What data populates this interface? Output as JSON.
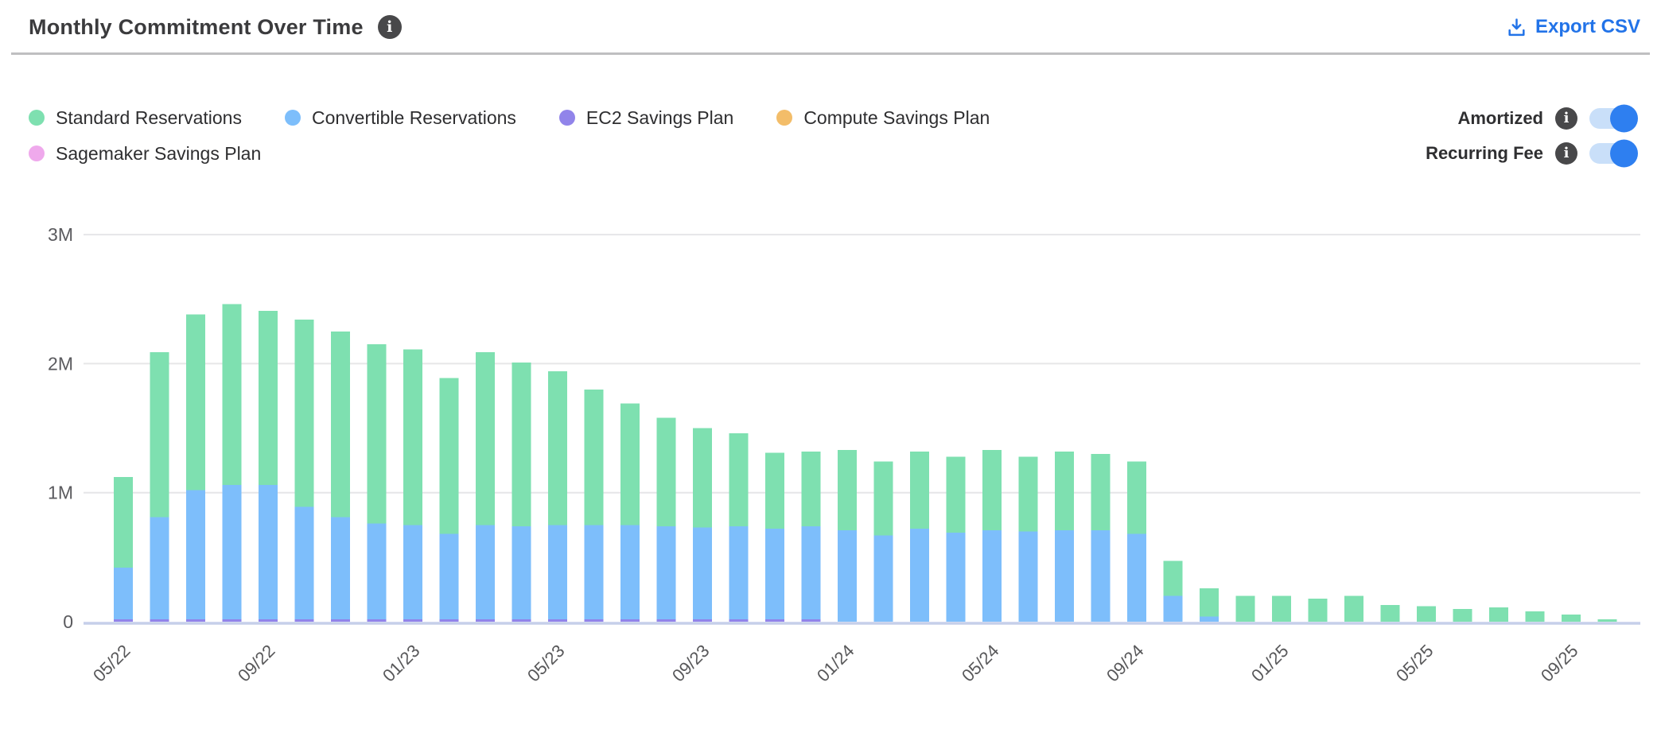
{
  "header": {
    "title": "Monthly Commitment Over Time",
    "export_label": "Export CSV"
  },
  "legend": {
    "items": [
      {
        "label": "Standard Reservations",
        "color": "#7ee0b0"
      },
      {
        "label": "Convertible Reservations",
        "color": "#7dbefb"
      },
      {
        "label": "EC2 Savings Plan",
        "color": "#9184ea"
      },
      {
        "label": "Compute Savings Plan",
        "color": "#f3bd69"
      },
      {
        "label": "Sagemaker Savings Plan",
        "color": "#efa9ec"
      }
    ]
  },
  "toggles": {
    "amortized": {
      "label": "Amortized",
      "state": "on"
    },
    "recurring_fee": {
      "label": "Recurring Fee",
      "state": "on"
    }
  },
  "colors": {
    "accent_blue": "#2273e8",
    "toggle_track": "#c9dff9",
    "toggle_knob": "#2e7ff0",
    "grid_line": "#e6e6e8",
    "zero_line": "#c6cfea",
    "title_text": "#3b3b3d",
    "axis_text": "#5a5a5e"
  },
  "chart_data": {
    "type": "bar",
    "stacked": true,
    "title": "Monthly Commitment Over Time",
    "unit": "M",
    "ylim": [
      0,
      3
    ],
    "grid": "horizontal",
    "legend_position": "top-left",
    "categories": [
      "05/22",
      "06/22",
      "07/22",
      "08/22",
      "09/22",
      "10/22",
      "11/22",
      "12/22",
      "01/23",
      "02/23",
      "03/23",
      "04/23",
      "05/23",
      "06/23",
      "07/23",
      "08/23",
      "09/23",
      "10/23",
      "11/23",
      "12/23",
      "01/24",
      "02/24",
      "03/24",
      "04/24",
      "05/24",
      "06/24",
      "07/24",
      "08/24",
      "09/24",
      "10/24",
      "11/24",
      "12/24",
      "01/25",
      "02/25",
      "03/25",
      "04/25",
      "05/25",
      "06/25",
      "07/25",
      "08/25",
      "09/25",
      "10/25"
    ],
    "series": [
      {
        "name": "EC2 Savings Plan",
        "color": "#9184ea",
        "values": [
          0.02,
          0.02,
          0.02,
          0.02,
          0.02,
          0.02,
          0.02,
          0.02,
          0.02,
          0.02,
          0.02,
          0.02,
          0.02,
          0.02,
          0.02,
          0.02,
          0.02,
          0.02,
          0.02,
          0.02,
          0,
          0,
          0,
          0,
          0,
          0,
          0,
          0,
          0,
          0,
          0,
          0,
          0,
          0,
          0,
          0,
          0,
          0,
          0,
          0,
          0,
          0
        ]
      },
      {
        "name": "Convertible Reservations",
        "color": "#7dbefb",
        "values": [
          0.4,
          0.79,
          1.0,
          1.04,
          1.04,
          0.87,
          0.79,
          0.74,
          0.73,
          0.66,
          0.73,
          0.72,
          0.73,
          0.73,
          0.73,
          0.72,
          0.71,
          0.72,
          0.7,
          0.72,
          0.71,
          0.67,
          0.72,
          0.69,
          0.71,
          0.7,
          0.71,
          0.71,
          0.68,
          0.2,
          0.04,
          0,
          0,
          0,
          0,
          0,
          0,
          0,
          0,
          0,
          0,
          0
        ]
      },
      {
        "name": "Standard Reservations",
        "color": "#7ee0b0",
        "values": [
          0.7,
          1.28,
          1.36,
          1.4,
          1.35,
          1.45,
          1.44,
          1.39,
          1.36,
          1.21,
          1.34,
          1.27,
          1.19,
          1.05,
          0.94,
          0.84,
          0.77,
          0.72,
          0.59,
          0.58,
          0.62,
          0.57,
          0.6,
          0.59,
          0.62,
          0.58,
          0.61,
          0.59,
          0.56,
          0.27,
          0.22,
          0.2,
          0.2,
          0.18,
          0.2,
          0.13,
          0.12,
          0.1,
          0.11,
          0.08,
          0.055,
          0.02
        ]
      },
      {
        "name": "Compute Savings Plan",
        "color": "#f3bd69",
        "values": []
      },
      {
        "name": "Sagemaker Savings Plan",
        "color": "#efa9ec",
        "values": []
      }
    ],
    "stack_order_note": "bottom to top: EC2 Savings Plan, Convertible Reservations, Standard Reservations",
    "y_ticks": [
      {
        "label": "0",
        "value": 0
      },
      {
        "label": "1M",
        "value": 1
      },
      {
        "label": "2M",
        "value": 2
      },
      {
        "label": "3M",
        "value": 3
      }
    ],
    "x_tick_labels": [
      "05/22",
      "09/22",
      "01/23",
      "05/23",
      "09/23",
      "01/24",
      "05/24",
      "09/24",
      "01/25",
      "05/25",
      "09/25"
    ],
    "x_tick_every": 4
  }
}
